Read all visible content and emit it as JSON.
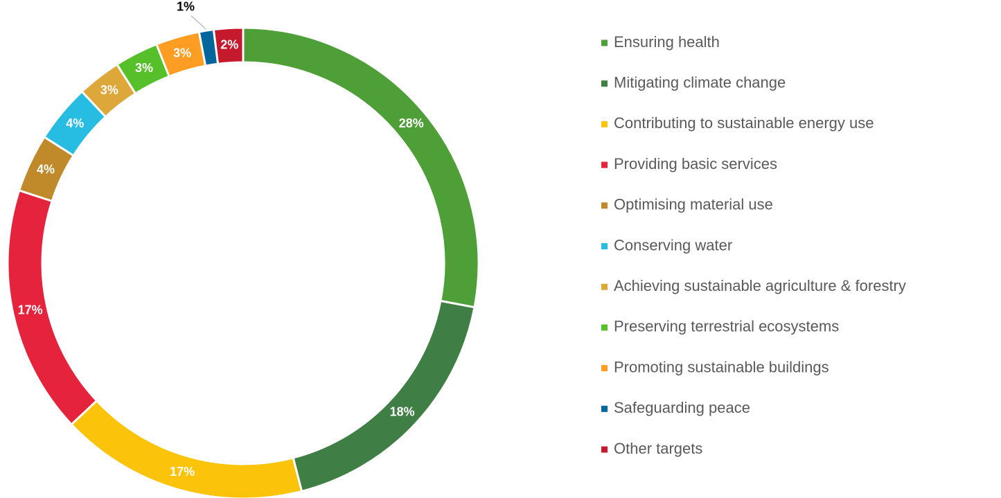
{
  "chart_data": {
    "type": "donut",
    "categories": [
      "Ensuring health",
      "Mitigating climate change",
      "Contributing to sustainable energy use",
      "Providing basic services",
      "Optimising material use",
      "Conserving water",
      "Achieving sustainable agriculture & forestry",
      "Preserving terrestrial ecosystems",
      "Promoting sustainable buildings",
      "Safeguarding peace",
      "Other targets"
    ],
    "values": [
      28,
      18,
      17,
      17,
      4,
      4,
      3,
      3,
      3,
      1,
      2
    ],
    "value_labels": [
      "28%",
      "18%",
      "17%",
      "17%",
      "4%",
      "4%",
      "3%",
      "3%",
      "3%",
      "1%",
      "2%"
    ],
    "colors": [
      "#4e9f38",
      "#3f7e44",
      "#fbc30a",
      "#e5233c",
      "#c08a2b",
      "#27bde2",
      "#dda73a",
      "#56c02b",
      "#fd9d24",
      "#02659c",
      "#c5192d"
    ],
    "legend": "right"
  }
}
